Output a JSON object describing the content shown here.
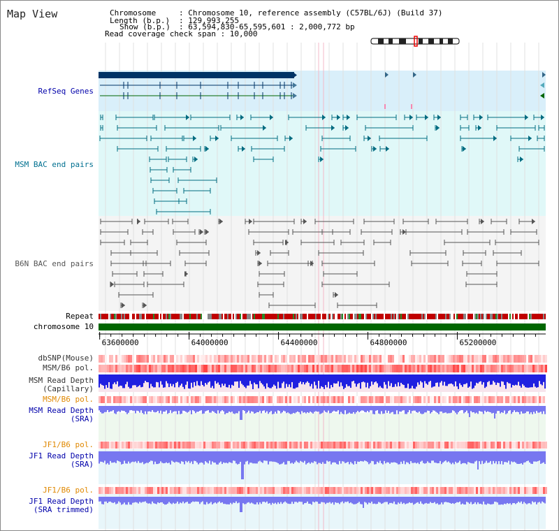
{
  "map_title": "Map View",
  "info": {
    "chromosome_key": "Chromosome",
    "chromosome_val": ": Chromosome 10, reference assembly (C57BL/6J) (Build 37)",
    "length_key": "Length (b.p.)",
    "length_val": ": 129,993,255",
    "show_key": "Show (b.p.)",
    "show_val": ": 63,594,830-65,595,601 : 2,000,772 bp",
    "coverage": "Read coverage check span : 10,000"
  },
  "tracks": {
    "refseq": "RefSeq Genes",
    "msm_bac": "MSM BAC end pairs",
    "b6n_bac": "B6N BAC end pairs",
    "repeat": "Repeat",
    "chrom": "chromosome 10",
    "dbsnp": "dbSNP(Mouse)",
    "msm_pol": "MSM/B6 pol.",
    "msm_depth_cap_1": "MSM Read Depth",
    "msm_depth_cap_2": "(Capillary)",
    "msm_pol_sra": "MSM/B6 pol.",
    "msm_depth_sra_1": "MSM Read Depth",
    "msm_depth_sra_2": "(SRA)",
    "jf1_pol": "JF1/B6 pol.",
    "jf1_depth_1": "JF1 Read Depth",
    "jf1_depth_2": "(SRA)",
    "jf1_pol_t": "JF1/B6 pol.",
    "jf1_depth_t_1": "JF1 Read Depth",
    "jf1_depth_t_2": "(SRA trimmed)"
  },
  "axis_ticks": [
    {
      "label": "63600000",
      "bp": 63600000
    },
    {
      "label": "64000000",
      "bp": 64000000
    },
    {
      "label": "64400000",
      "bp": 64400000
    },
    {
      "label": "64800000",
      "bp": 64800000
    },
    {
      "label": "65200000",
      "bp": 65200000
    }
  ],
  "colors": {
    "refseq_bg": "#d9effa",
    "msm_bg": "#e0f8f8",
    "b6n_bg": "#f4f4f4",
    "refseq_line": "#003366",
    "msm_line": "#006b80",
    "b6n_line": "#555555",
    "chrom": "#006600",
    "depth_dark": "#2020e0",
    "depth_light": "#7777f0",
    "label_blue": "#0000aa",
    "label_teal": "#007090",
    "label_orange": "#e08800"
  }
}
